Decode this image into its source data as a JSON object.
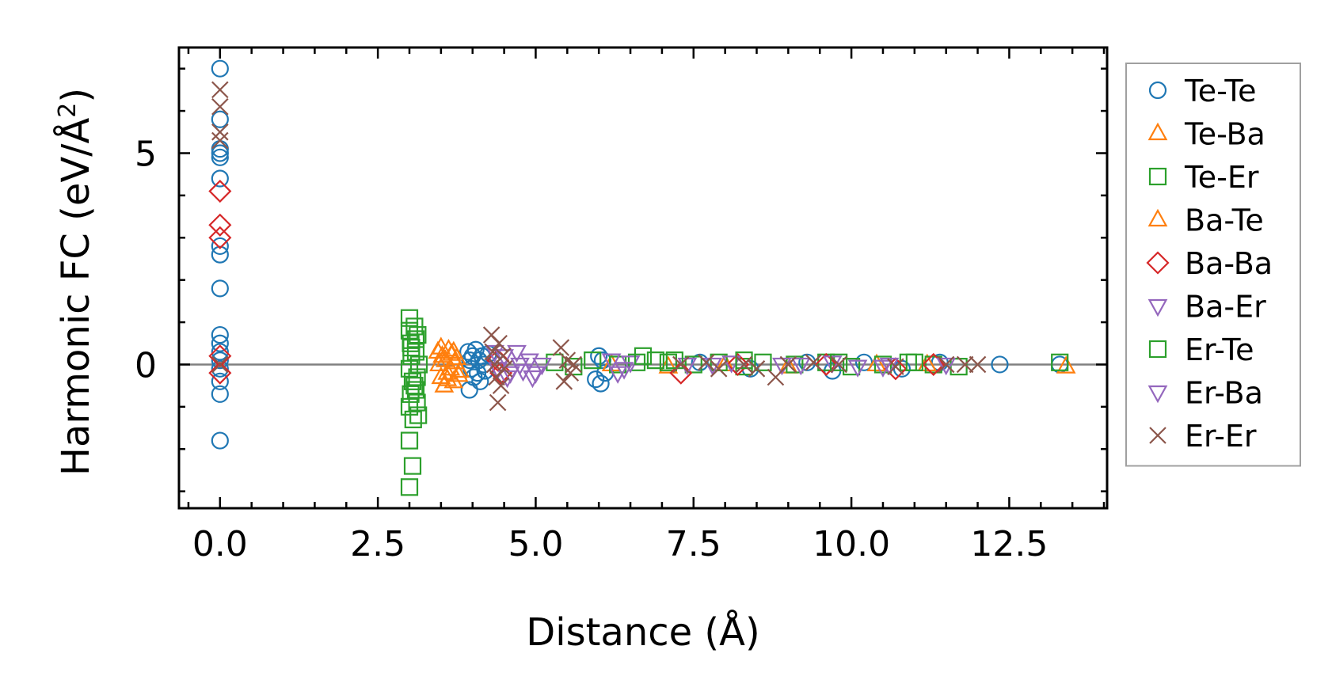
{
  "chart_data": {
    "type": "scatter",
    "title": "",
    "xlabel": "Distance (Å)",
    "ylabel": "Harmonic FC (eV/Å²)",
    "ylabel_main": "Harmonic FC (eV/Å",
    "ylabel_sup": "2",
    "ylabel_close": ")",
    "xlim": [
      -0.65,
      14.05
    ],
    "ylim": [
      -3.4,
      7.5
    ],
    "xticks": [
      0.0,
      2.5,
      5.0,
      7.5,
      10.0,
      12.5
    ],
    "xtick_labels": [
      "0.0",
      "2.5",
      "5.0",
      "7.5",
      "10.0",
      "12.5"
    ],
    "yticks": [
      0,
      5
    ],
    "ytick_labels": [
      "0",
      "5"
    ],
    "xminor_step": 0.5,
    "yminor_step": 1,
    "zero_line": true,
    "grid": false,
    "legend_position": "outside-right",
    "series": [
      {
        "name": "Te-Te",
        "marker": "circle",
        "color": "#1f77b4",
        "points": [
          [
            0,
            7.0
          ],
          [
            0,
            5.8
          ],
          [
            0,
            5.1
          ],
          [
            0,
            5.0
          ],
          [
            0,
            4.9
          ],
          [
            0,
            4.4
          ],
          [
            0,
            2.8
          ],
          [
            0,
            2.6
          ],
          [
            0,
            1.8
          ],
          [
            0,
            0.7
          ],
          [
            0,
            0.5
          ],
          [
            0,
            0.3
          ],
          [
            0,
            0.1
          ],
          [
            0,
            -0.1
          ],
          [
            0,
            -0.4
          ],
          [
            0,
            -0.7
          ],
          [
            0,
            -1.8
          ],
          [
            3.93,
            0.3
          ],
          [
            3.96,
            0.1
          ],
          [
            3.98,
            -0.1
          ],
          [
            4.0,
            0.2
          ],
          [
            4.02,
            -0.3
          ],
          [
            4.05,
            0.35
          ],
          [
            4.08,
            -0.2
          ],
          [
            4.1,
            0.1
          ],
          [
            4.12,
            -0.4
          ],
          [
            4.15,
            0.2
          ],
          [
            4.18,
            0.0
          ],
          [
            3.95,
            -0.6
          ],
          [
            4.2,
            -0.15
          ],
          [
            4.25,
            0.25
          ],
          [
            5.95,
            -0.35
          ],
          [
            6.0,
            0.2
          ],
          [
            6.03,
            -0.45
          ],
          [
            6.06,
            0.1
          ],
          [
            6.1,
            -0.2
          ],
          [
            7.6,
            0.05
          ],
          [
            8.4,
            -0.1
          ],
          [
            9.3,
            0.05
          ],
          [
            9.7,
            -0.15
          ],
          [
            10.2,
            0.05
          ],
          [
            10.8,
            -0.1
          ],
          [
            11.4,
            0.05
          ],
          [
            12.35,
            0.0
          ],
          [
            13.3,
            0.0
          ]
        ]
      },
      {
        "name": "Te-Ba",
        "marker": "triangle-up",
        "color": "#ff7f0e",
        "points": [
          [
            3.45,
            0.3
          ],
          [
            3.47,
            0.0
          ],
          [
            3.5,
            -0.3
          ],
          [
            3.52,
            0.2
          ],
          [
            3.55,
            -0.5
          ],
          [
            3.57,
            0.1
          ],
          [
            3.6,
            -0.2
          ],
          [
            3.62,
            0.35
          ],
          [
            3.65,
            -0.1
          ],
          [
            3.67,
            0.25
          ],
          [
            3.7,
            -0.4
          ],
          [
            3.72,
            0.05
          ],
          [
            3.75,
            0.15
          ],
          [
            3.78,
            -0.25
          ],
          [
            6.2,
            0.0
          ],
          [
            7.1,
            -0.05
          ],
          [
            8.0,
            0.0
          ],
          [
            9.0,
            -0.05
          ],
          [
            10.4,
            0.0
          ],
          [
            11.2,
            0.0
          ],
          [
            13.4,
            -0.05
          ]
        ]
      },
      {
        "name": "Te-Er",
        "marker": "square",
        "color": "#2ca02c",
        "points": [
          [
            3.0,
            1.1
          ],
          [
            3.0,
            0.8
          ],
          [
            3.02,
            0.5
          ],
          [
            3.03,
            0.2
          ],
          [
            3.0,
            -0.1
          ],
          [
            3.05,
            -0.4
          ],
          [
            3.02,
            -0.7
          ],
          [
            3.0,
            -1.0
          ],
          [
            3.06,
            -1.3
          ],
          [
            3.08,
            0.9
          ],
          [
            3.1,
            0.6
          ],
          [
            3.1,
            0.3
          ],
          [
            3.12,
            -0.3
          ],
          [
            3.1,
            -0.6
          ],
          [
            3.12,
            -0.9
          ],
          [
            3.14,
            -1.2
          ],
          [
            3.15,
            0.0
          ],
          [
            3.0,
            -1.8
          ],
          [
            3.05,
            -2.4
          ],
          [
            3.0,
            -2.9
          ],
          [
            5.3,
            0.05
          ],
          [
            5.6,
            -0.05
          ],
          [
            5.9,
            0.1
          ],
          [
            6.3,
            0.0
          ],
          [
            6.6,
            0.05
          ],
          [
            6.9,
            0.1
          ],
          [
            7.1,
            0.05
          ],
          [
            7.5,
            0.0
          ],
          [
            7.9,
            0.05
          ],
          [
            8.3,
            -0.05
          ],
          [
            8.6,
            0.05
          ],
          [
            9.1,
            0.0
          ],
          [
            9.6,
            0.05
          ],
          [
            10.0,
            -0.05
          ],
          [
            10.5,
            0.0
          ],
          [
            10.9,
            0.05
          ],
          [
            11.3,
            0.0
          ],
          [
            11.7,
            -0.05
          ],
          [
            13.3,
            0.05
          ]
        ]
      },
      {
        "name": "Ba-Te",
        "marker": "triangle-up",
        "color": "#ff7f0e",
        "points": [
          [
            3.5,
            0.4
          ],
          [
            3.6,
            -0.35
          ],
          [
            3.7,
            0.3
          ],
          [
            3.8,
            -0.15
          ]
        ]
      },
      {
        "name": "Ba-Ba",
        "marker": "diamond",
        "color": "#d62728",
        "points": [
          [
            0,
            4.1
          ],
          [
            0,
            3.3
          ],
          [
            0,
            3.0
          ],
          [
            0,
            0.2
          ],
          [
            0,
            -0.2
          ],
          [
            4.4,
            0.1
          ],
          [
            4.45,
            -0.2
          ],
          [
            7.3,
            -0.2
          ],
          [
            8.2,
            0.0
          ],
          [
            9.6,
            0.0
          ],
          [
            10.7,
            -0.1
          ],
          [
            11.3,
            0.0
          ]
        ]
      },
      {
        "name": "Ba-Er",
        "marker": "triangle-down",
        "color": "#9467bd",
        "points": [
          [
            4.35,
            0.3
          ],
          [
            4.4,
            -0.1
          ],
          [
            4.5,
            0.2
          ],
          [
            4.6,
            -0.2
          ],
          [
            4.7,
            0.3
          ],
          [
            4.8,
            -0.15
          ],
          [
            4.9,
            0.1
          ],
          [
            5.0,
            -0.2
          ],
          [
            5.1,
            0.0
          ],
          [
            6.2,
            0.1
          ],
          [
            6.4,
            -0.1
          ],
          [
            6.5,
            0.05
          ],
          [
            7.4,
            0.0
          ],
          [
            8.1,
            0.05
          ],
          [
            8.9,
            0.0
          ],
          [
            9.7,
            0.05
          ],
          [
            10.1,
            -0.05
          ],
          [
            10.6,
            0.0
          ],
          [
            11.5,
            0.0
          ]
        ]
      },
      {
        "name": "Er-Te",
        "marker": "square",
        "color": "#2ca02c",
        "points": [
          [
            3.03,
            0.4
          ],
          [
            3.08,
            -0.5
          ],
          [
            3.13,
            0.7
          ],
          [
            6.7,
            0.2
          ],
          [
            7.2,
            0.1
          ],
          [
            8.3,
            0.1
          ],
          [
            9.8,
            0.05
          ],
          [
            11.0,
            0.05
          ]
        ]
      },
      {
        "name": "Er-Ba",
        "marker": "triangle-down",
        "color": "#9467bd",
        "points": [
          [
            4.55,
            -0.3
          ],
          [
            4.75,
            0.0
          ],
          [
            4.95,
            -0.3
          ],
          [
            6.3,
            -0.2
          ],
          [
            7.8,
            0.0
          ],
          [
            9.2,
            0.0
          ],
          [
            10.5,
            -0.05
          ]
        ]
      },
      {
        "name": "Er-Er",
        "marker": "x",
        "color": "#8c564b",
        "points": [
          [
            0,
            6.5
          ],
          [
            0,
            6.1
          ],
          [
            0,
            5.5
          ],
          [
            0,
            5.3
          ],
          [
            0,
            0.0
          ],
          [
            4.3,
            0.7
          ],
          [
            4.32,
            0.3
          ],
          [
            4.35,
            0.0
          ],
          [
            4.38,
            -0.3
          ],
          [
            4.4,
            -0.9
          ],
          [
            4.42,
            0.5
          ],
          [
            4.45,
            -0.5
          ],
          [
            4.48,
            0.2
          ],
          [
            4.5,
            -0.1
          ],
          [
            5.4,
            0.4
          ],
          [
            5.45,
            -0.4
          ],
          [
            5.5,
            0.1
          ],
          [
            5.55,
            -0.2
          ],
          [
            5.6,
            0.0
          ],
          [
            7.3,
            0.0
          ],
          [
            7.7,
            0.05
          ],
          [
            7.9,
            -0.1
          ],
          [
            8.3,
            0.0
          ],
          [
            8.5,
            -0.1
          ],
          [
            8.8,
            -0.3
          ],
          [
            9.0,
            0.0
          ],
          [
            9.4,
            0.05
          ],
          [
            9.8,
            0.0
          ],
          [
            10.7,
            -0.05
          ],
          [
            11.5,
            0.0
          ],
          [
            11.8,
            0.0
          ],
          [
            12.0,
            0.0
          ]
        ]
      }
    ]
  }
}
